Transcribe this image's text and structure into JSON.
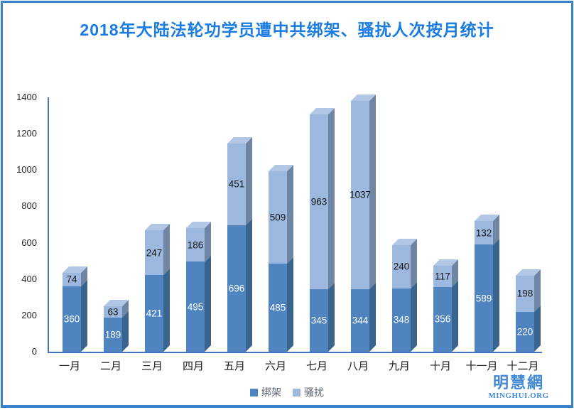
{
  "title": "2018年大陆法轮功学员遭中共绑架、骚扰人次按月统计",
  "chart_data": {
    "type": "bar",
    "stacked": true,
    "effect": "3d",
    "title": "2018年大陆法轮功学员遭中共绑架、骚扰人次按月统计",
    "categories": [
      "一月",
      "二月",
      "三月",
      "四月",
      "五月",
      "六月",
      "七月",
      "八月",
      "九月",
      "十月",
      "十一月",
      "十二月"
    ],
    "series": [
      {
        "name": "绑架",
        "color": "#4f84bf",
        "side_color": "#3a6490",
        "label_color": "#ffffff",
        "values": [
          360,
          189,
          421,
          495,
          696,
          485,
          345,
          344,
          348,
          356,
          589,
          220
        ]
      },
      {
        "name": "骚扰",
        "color": "#9cb8de",
        "side_color": "#6f85a4",
        "label_color": "#151515",
        "values": [
          74,
          63,
          247,
          186,
          451,
          509,
          963,
          1037,
          240,
          117,
          132,
          198
        ]
      }
    ],
    "cap_color": "#b2c7e5",
    "ylim": [
      0,
      1400
    ],
    "yticks": [
      0,
      200,
      400,
      600,
      800,
      1000,
      1200,
      1400
    ],
    "grid": false,
    "data_labels": true,
    "legend_position": "bottom"
  },
  "branding": {
    "logo_cn": "明慧網",
    "logo_en": "MINGHUI.ORG"
  },
  "colors": {
    "frame_border": "#3b80c6",
    "title_text": "#1a7ce2",
    "axis_line": "#4472c4",
    "tick_text": "#262626",
    "legend_text": "#5a6270",
    "logo_blue": "#4289d5"
  }
}
